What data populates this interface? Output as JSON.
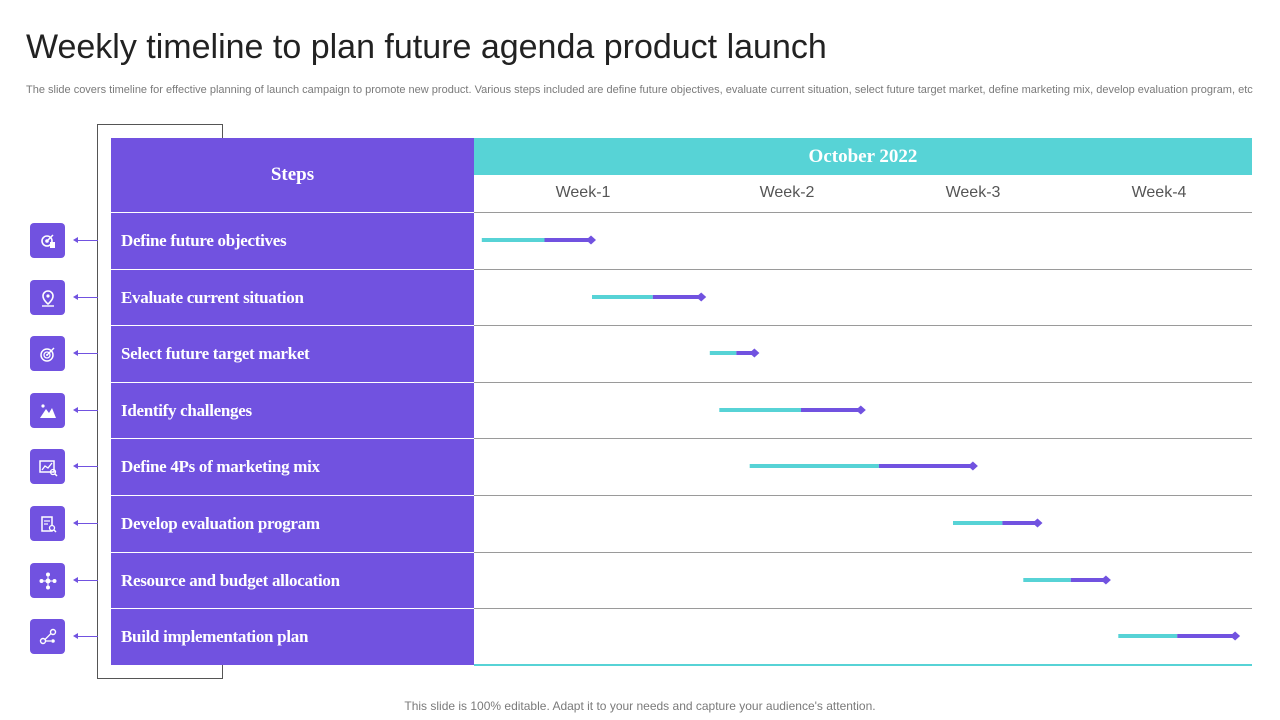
{
  "slide": {
    "title": "Weekly timeline to plan future agenda product launch",
    "subtitle": "The slide covers timeline for effective  planning of launch campaign to promote new product. Various steps included are define future objectives, evaluate current situation, select future target market, define marketing mix, develop evaluation program, etc",
    "footer": "This slide is 100% editable. Adapt it to your needs and capture your audience's attention."
  },
  "colors": {
    "purple": "#7152e0",
    "teal": "#57d3d6"
  },
  "chart_data": {
    "type": "bar",
    "subtype": "gantt",
    "steps_header": "Steps",
    "month": "October 2022",
    "weeks": [
      "Week-1",
      "Week-2",
      "Week-3",
      "Week-4"
    ],
    "x_unit": "weeks",
    "xlim": [
      0,
      4
    ],
    "legend": "none",
    "tasks": [
      {
        "label": "Define future objectives",
        "icon": "target-dart-icon",
        "start": 0.02,
        "split": 0.35,
        "end": 0.6
      },
      {
        "label": "Evaluate current situation",
        "icon": "location-pin-icon",
        "start": 0.6,
        "split": 0.92,
        "end": 1.18
      },
      {
        "label": "Select future target market",
        "icon": "target-icon",
        "start": 1.22,
        "split": 1.36,
        "end": 1.46
      },
      {
        "label": "Identify challenges",
        "icon": "mountain-climb-icon",
        "start": 1.27,
        "split": 1.7,
        "end": 2.02
      },
      {
        "label": "Define 4Ps of marketing mix",
        "icon": "analysis-chart-icon",
        "start": 1.43,
        "split": 2.11,
        "end": 2.61
      },
      {
        "label": "Develop evaluation program",
        "icon": "clipboard-search-icon",
        "start": 2.5,
        "split": 2.76,
        "end": 2.95
      },
      {
        "label": "Resource and budget allocation",
        "icon": "resource-network-icon",
        "start": 2.87,
        "split": 3.12,
        "end": 3.31
      },
      {
        "label": "Build implementation plan",
        "icon": "plan-nodes-icon",
        "start": 3.37,
        "split": 3.68,
        "end": 3.99
      }
    ]
  }
}
